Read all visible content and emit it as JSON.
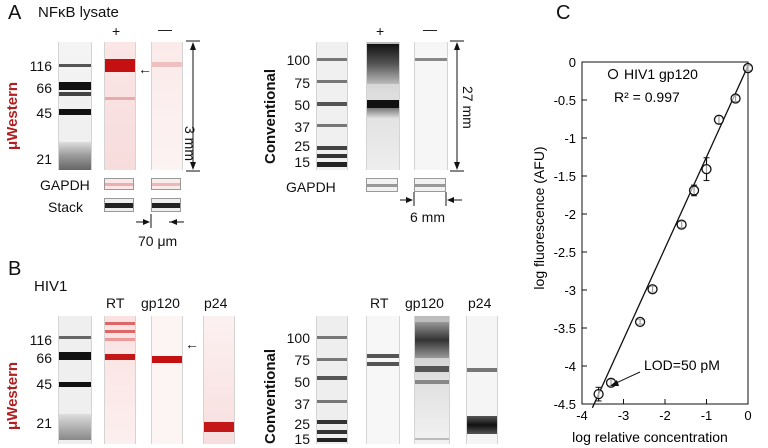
{
  "panel_a": {
    "letter": "A",
    "header": "NFκB lysate",
    "uwestern_label": "μWestern",
    "conventional_label": "Conventional",
    "plus": "+",
    "minus": "—",
    "uw_mw": [
      "116",
      "66",
      "45",
      "21"
    ],
    "conv_mw": [
      "100",
      "75",
      "50",
      "37",
      "25",
      "15"
    ],
    "gapdh": "GAPDH",
    "stack": "Stack",
    "dim_3mm": "3 mm",
    "dim_27mm": "27 mm",
    "dim_70um": "70 μm",
    "dim_6mm": "6 mm"
  },
  "panel_b": {
    "letter": "B",
    "header": "HIV1",
    "uwestern_label": "μWestern",
    "conventional_label": "Conventional",
    "lanes": [
      "RT",
      "gp120",
      "p24"
    ],
    "uw_mw": [
      "116",
      "66",
      "45",
      "21"
    ],
    "conv_mw": [
      "100",
      "75",
      "50",
      "37",
      "25",
      "15"
    ]
  },
  "panel_c": {
    "letter": "C",
    "legend": "HIV1 gp120",
    "r2": "R² = 0.997",
    "lod": "LOD=50 pM"
  },
  "chart_data": {
    "type": "scatter",
    "xlabel": "log relative concentration",
    "ylabel": "log fluorescence (AFU)",
    "xlim": [
      -4,
      0
    ],
    "ylim": [
      -4.5,
      0
    ],
    "xticks": [
      "-4",
      "-3",
      "-2",
      "-1",
      "0"
    ],
    "yticks": [
      "0",
      "-0.5",
      "-1",
      "-1.5",
      "-2",
      "-2.5",
      "-3",
      "-3.5",
      "-4",
      "-4.5"
    ],
    "series": [
      {
        "name": "HIV1 gp120",
        "x": [
          -3.6,
          -3.3,
          -2.6,
          -2.3,
          -1.6,
          -1.3,
          -1.0,
          -0.7,
          -0.3,
          0.0
        ],
        "y": [
          -4.37,
          -4.22,
          -3.42,
          -2.99,
          -2.14,
          -1.69,
          -1.41,
          -0.76,
          -0.48,
          -0.08
        ],
        "err": [
          0.09,
          0.04,
          0.03,
          0.04,
          0.04,
          0.07,
          0.15,
          0.05,
          0.04,
          0.03
        ]
      }
    ],
    "fit_line": {
      "x": [
        -3.75,
        0.0
      ],
      "y": [
        -4.55,
        -0.05
      ]
    },
    "legend_position": "top-left",
    "grid": false
  }
}
